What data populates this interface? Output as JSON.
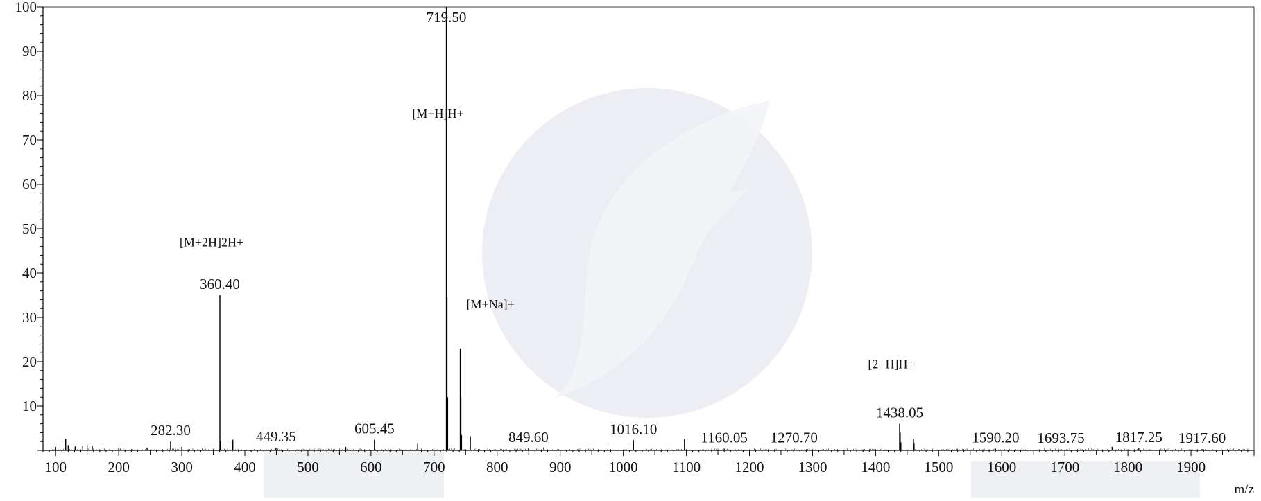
{
  "chart_data": {
    "type": "line",
    "xlabel": "m/z",
    "ylabel": "",
    "xlim": [
      80,
      2000
    ],
    "ylim": [
      0,
      100
    ],
    "x_ticks": [
      100,
      200,
      300,
      400,
      500,
      600,
      700,
      800,
      900,
      1000,
      1100,
      1200,
      1300,
      1400,
      1500,
      1600,
      1700,
      1800,
      1900
    ],
    "y_ticks": [
      10,
      20,
      30,
      40,
      50,
      60,
      70,
      80,
      90,
      100
    ],
    "grid": false,
    "series": [
      {
        "peaks": [
          {
            "x": 100,
            "y": 0.8
          },
          {
            "x": 116,
            "y": 2.6
          },
          {
            "x": 120,
            "y": 1.2
          },
          {
            "x": 131,
            "y": 0.9
          },
          {
            "x": 143,
            "y": 1.0
          },
          {
            "x": 150,
            "y": 1.2
          },
          {
            "x": 158,
            "y": 1.1
          },
          {
            "x": 200,
            "y": 0.5
          },
          {
            "x": 245,
            "y": 0.6
          },
          {
            "x": 282.3,
            "y": 2.0
          },
          {
            "x": 300,
            "y": 0.8
          },
          {
            "x": 360.4,
            "y": 35.0
          },
          {
            "x": 361.4,
            "y": 2.2
          },
          {
            "x": 381,
            "y": 2.4
          },
          {
            "x": 449.35,
            "y": 0.6
          },
          {
            "x": 560,
            "y": 0.8
          },
          {
            "x": 605.45,
            "y": 2.4
          },
          {
            "x": 674,
            "y": 1.5
          },
          {
            "x": 719.5,
            "y": 100.0
          },
          {
            "x": 720.5,
            "y": 34.5
          },
          {
            "x": 721.5,
            "y": 12.0
          },
          {
            "x": 741.5,
            "y": 23.0
          },
          {
            "x": 742.5,
            "y": 12.0
          },
          {
            "x": 743.5,
            "y": 3.5
          },
          {
            "x": 757.5,
            "y": 3.2
          },
          {
            "x": 849.6,
            "y": 0.5
          },
          {
            "x": 874,
            "y": 0.7
          },
          {
            "x": 1016.1,
            "y": 2.3
          },
          {
            "x": 1097,
            "y": 2.5
          },
          {
            "x": 1160.05,
            "y": 0.4
          },
          {
            "x": 1270.7,
            "y": 0.4
          },
          {
            "x": 1438.05,
            "y": 6.0
          },
          {
            "x": 1439.05,
            "y": 4.0
          },
          {
            "x": 1440.05,
            "y": 1.8
          },
          {
            "x": 1460,
            "y": 2.6
          },
          {
            "x": 1461,
            "y": 1.5
          },
          {
            "x": 1590.2,
            "y": 0.4
          },
          {
            "x": 1693.75,
            "y": 0.3
          },
          {
            "x": 1775,
            "y": 0.8
          },
          {
            "x": 1817.25,
            "y": 0.5
          },
          {
            "x": 1917.6,
            "y": 0.3
          }
        ]
      }
    ],
    "peak_labels": [
      {
        "text": "719.50",
        "x": 719.5,
        "y": 100.0
      },
      {
        "text": "360.40",
        "x": 360.4,
        "y": 35.0
      },
      {
        "text": "282.30",
        "x": 282.3,
        "y": 2.0
      },
      {
        "text": "449.35",
        "x": 449.35,
        "y": 0.6
      },
      {
        "text": "605.45",
        "x": 605.45,
        "y": 2.4
      },
      {
        "text": "849.60",
        "x": 849.6,
        "y": 0.5
      },
      {
        "text": "1016.10",
        "x": 1016.1,
        "y": 2.3
      },
      {
        "text": "1160.05",
        "x": 1160.05,
        "y": 0.4
      },
      {
        "text": "1270.70",
        "x": 1270.7,
        "y": 0.4
      },
      {
        "text": "1438.05",
        "x": 1438.05,
        "y": 6.0
      },
      {
        "text": "1590.20",
        "x": 1590.2,
        "y": 0.4
      },
      {
        "text": "1693.75",
        "x": 1693.75,
        "y": 0.3
      },
      {
        "text": "1817.25",
        "x": 1817.25,
        "y": 0.5
      },
      {
        "text": "1917.60",
        "x": 1917.6,
        "y": 0.3
      }
    ],
    "annotations": [
      {
        "text": "[M+H]H+",
        "x": 719.5,
        "y": 75.0
      },
      {
        "text": "[M+2H]2H+",
        "x": 360.4,
        "y": 46.0
      },
      {
        "text": "[M+Na]+",
        "x": 741.5,
        "y": 32.0
      },
      {
        "text": "[2+H]H+",
        "x": 1438.05,
        "y": 18.5
      }
    ],
    "colors": {
      "line": "#000000",
      "axis": "#000000",
      "watermark": "#e2e4ee"
    }
  }
}
